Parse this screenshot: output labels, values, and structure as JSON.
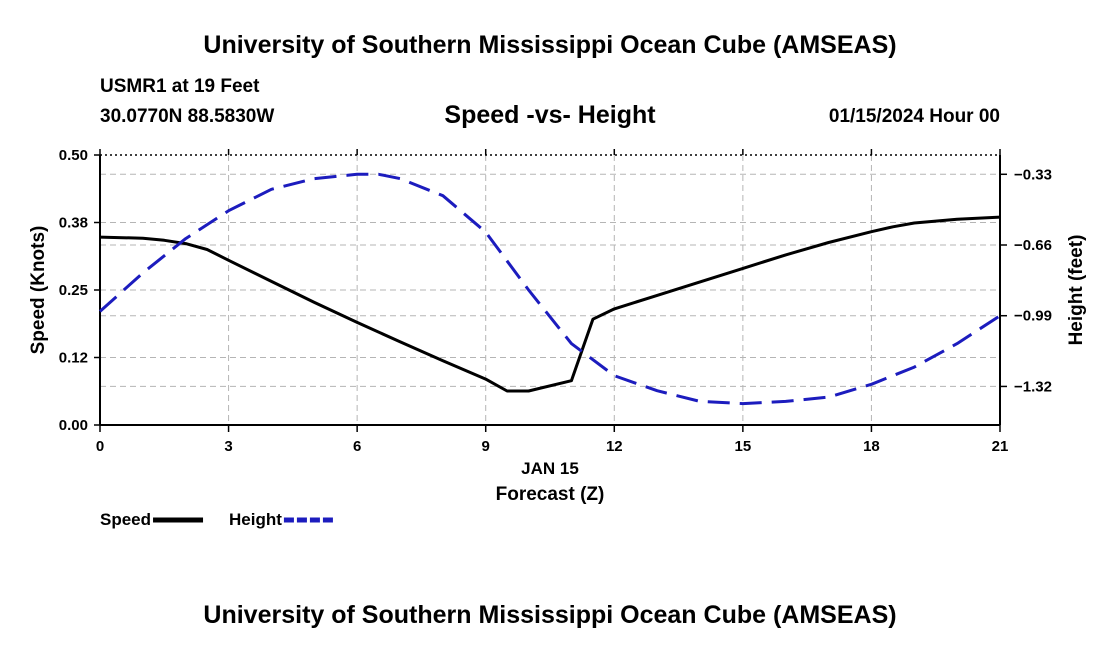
{
  "header": {
    "title": "University of Southern Mississippi Ocean Cube (AMSEAS)",
    "station": "USMR1 at 19 Feet",
    "coords": "30.0770N  88.5830W",
    "chart_subtitle": "Speed -vs- Height",
    "datetime": "01/15/2024 Hour 00"
  },
  "footer": {
    "title": "University of Southern Mississippi Ocean Cube (AMSEAS)"
  },
  "chart_data": {
    "type": "line",
    "title": "Speed -vs- Height",
    "xlabel": "Forecast (Z)",
    "xlabel_date": "JAN 15",
    "ylabel": "Speed (Knots)",
    "ylabel_right": "Height (feet)",
    "xlim": [
      0,
      21
    ],
    "ylim": [
      0,
      0.5
    ],
    "ylim_right": [
      -1.5,
      -0.24
    ],
    "x_ticks": [
      0,
      3,
      6,
      9,
      12,
      15,
      18,
      21
    ],
    "x_tick_labels": [
      "0",
      "3",
      "6",
      "9",
      "12",
      "15",
      "18",
      "21"
    ],
    "y_ticks": [
      0,
      0.125,
      0.25,
      0.375,
      0.5
    ],
    "y_tick_labels": [
      "0.00",
      "0.12",
      "0.25",
      "0.38",
      "0.50"
    ],
    "y_right_ticks": [
      -0.33,
      -0.66,
      -0.99,
      -1.32
    ],
    "y_right_tick_labels": [
      "−0.33",
      "−0.66",
      "−0.99",
      "−1.32"
    ],
    "grid": true,
    "legend_position": "bottom-left",
    "series": [
      {
        "name": "Speed",
        "axis": "left",
        "color": "#000000",
        "dash": "solid",
        "x": [
          0,
          1,
          1.5,
          2,
          2.5,
          3,
          4,
          5,
          6,
          7,
          8,
          9,
          9.5,
          10,
          11,
          11.5,
          12,
          13,
          14,
          15,
          16,
          17,
          18,
          18.5,
          19,
          20,
          21
        ],
        "y": [
          0.348,
          0.346,
          0.342,
          0.336,
          0.325,
          0.305,
          0.266,
          0.227,
          0.19,
          0.154,
          0.119,
          0.085,
          0.063,
          0.063,
          0.082,
          0.196,
          0.215,
          0.24,
          0.265,
          0.29,
          0.315,
          0.338,
          0.358,
          0.367,
          0.374,
          0.381,
          0.385
        ]
      },
      {
        "name": "Height",
        "axis": "right",
        "color": "#1c1cbe",
        "dash": "dashed",
        "x": [
          0,
          1,
          2,
          3,
          4,
          5,
          6,
          6.5,
          7,
          8,
          9,
          10,
          11,
          12,
          13,
          14,
          15,
          16,
          17,
          18,
          19,
          20,
          21
        ],
        "y": [
          -0.97,
          -0.79,
          -0.63,
          -0.5,
          -0.4,
          -0.35,
          -0.33,
          -0.33,
          -0.35,
          -0.43,
          -0.6,
          -0.87,
          -1.12,
          -1.27,
          -1.34,
          -1.39,
          -1.4,
          -1.39,
          -1.37,
          -1.31,
          -1.23,
          -1.12,
          -0.99
        ]
      }
    ]
  }
}
